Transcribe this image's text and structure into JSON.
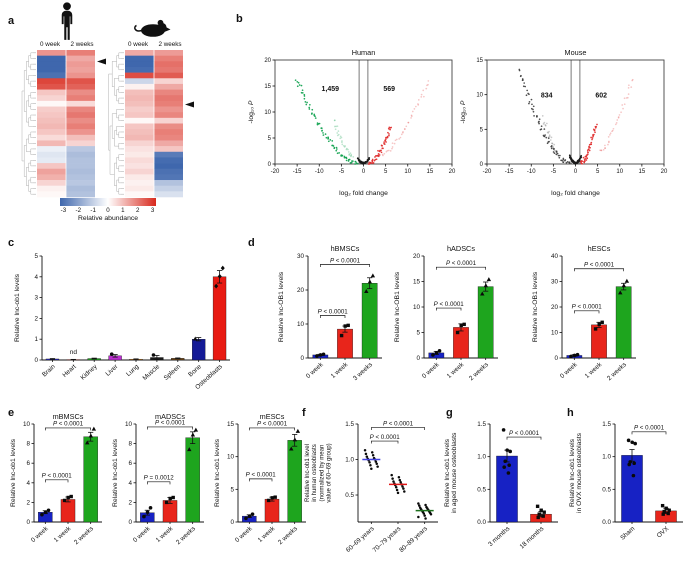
{
  "labels": {
    "a": "a",
    "b": "b",
    "c": "c",
    "d": "d",
    "e": "e",
    "f": "f",
    "g": "g",
    "h": "h"
  },
  "icons": {
    "human": "human-silhouette",
    "mouse": "mouse-silhouette"
  },
  "colorbar": {
    "ticks": [
      "-3",
      "-2",
      "-1",
      "0",
      "1",
      "2",
      "3"
    ],
    "label": "Relative abundance",
    "negative_color": "#3f67ad",
    "zero_color": "#ffffff",
    "positive_color": "#d8291d"
  },
  "palette": {
    "bar_blue": "#1722c4",
    "bar_red": "#e8251b",
    "bar_green": "#1ea51e",
    "volcano_green": "#14a352",
    "volcano_red": "#e03131",
    "volcano_dark": "#3c3c3c"
  },
  "chart_data": [
    {
      "id": "hm-human",
      "type": "heatmap",
      "columns": [
        "0 week",
        "2 weeks"
      ],
      "arrow_row": 3,
      "vmin": -3,
      "vmax": 3,
      "rows": [
        [
          1.5,
          1.8
        ],
        [
          -3,
          1.2
        ],
        [
          -3,
          1.4
        ],
        [
          -3,
          1.3
        ],
        [
          -2.8,
          1.5
        ],
        [
          2.6,
          2.4
        ],
        [
          2.4,
          2.2
        ],
        [
          0.8,
          1.6
        ],
        [
          0.6,
          1.8
        ],
        [
          0.1,
          0.5
        ],
        [
          0.7,
          1.7
        ],
        [
          0.8,
          1.9
        ],
        [
          0.9,
          1.6
        ],
        [
          1,
          1.8
        ],
        [
          0.8,
          1.5
        ],
        [
          0.5,
          0.9
        ],
        [
          1,
          0.6
        ],
        [
          -0.3,
          -1.1
        ],
        [
          -0.5,
          -1.3
        ],
        [
          -0.4,
          -1.2
        ],
        [
          0.8,
          -1.2
        ],
        [
          1.3,
          -1.3
        ],
        [
          1.1,
          -1.2
        ],
        [
          0.6,
          -1.1
        ],
        [
          0.2,
          -1.3
        ],
        [
          0.1,
          -1.2
        ]
      ]
    },
    {
      "id": "hm-mouse",
      "type": "heatmap",
      "columns": [
        "0 week",
        "2 weeks"
      ],
      "arrow_row": 10,
      "vmin": -3,
      "vmax": 3,
      "rows": [
        [
          1.2,
          1.4
        ],
        [
          -3,
          1.8
        ],
        [
          -3,
          2
        ],
        [
          -2.9,
          1.9
        ],
        [
          2.5,
          2.3
        ],
        [
          -0.8,
          0.6
        ],
        [
          0.2,
          1.2
        ],
        [
          0.9,
          1.7
        ],
        [
          1,
          1.9
        ],
        [
          0.9,
          1.8
        ],
        [
          0.7,
          1.5
        ],
        [
          0.8,
          1.7
        ],
        [
          0.1,
          0.6
        ],
        [
          0.8,
          1.6
        ],
        [
          0.9,
          1.8
        ],
        [
          1,
          1.7
        ],
        [
          0.6,
          1.2
        ],
        [
          0.4,
          0.8
        ],
        [
          0.3,
          -2.6
        ],
        [
          0.5,
          -2.9
        ],
        [
          0.4,
          -3
        ],
        [
          0.6,
          -2.8
        ],
        [
          0.3,
          -2.7
        ],
        [
          0.2,
          -1.2
        ],
        [
          0.3,
          -0.9
        ],
        [
          0.1,
          -0.6
        ]
      ]
    },
    {
      "id": "vol-human",
      "type": "volcano",
      "title": "Human",
      "xlabel": "log₂ fold change",
      "ylabel": "-log₁₀ P",
      "xlim": [
        -20,
        20
      ],
      "ylim": [
        0,
        20
      ],
      "xticks": [
        -20,
        -15,
        -10,
        -5,
        0,
        5,
        10,
        15,
        20
      ],
      "yticks": [
        0,
        5,
        10,
        15,
        20
      ],
      "vlines": [
        -1,
        1
      ],
      "counts": [
        {
          "label": "1,459",
          "color": "#14a352",
          "x": -7.5,
          "y": 14
        },
        {
          "label": "569",
          "color": "#e03131",
          "x": 5.8,
          "y": 14
        }
      ],
      "branches": [
        {
          "x0": -1.3,
          "y0": 0.15,
          "x1": -15.2,
          "y1": 16.4,
          "color": "#14a352",
          "opacity": 0.95,
          "n": 75,
          "pow": 1.7
        },
        {
          "x0": -2.4,
          "y0": 1.4,
          "x1": -6.8,
          "y1": 8.4,
          "color": "#14a352",
          "opacity": 0.28,
          "n": 30,
          "pow": 1.4
        },
        {
          "x0": 1.2,
          "y0": 0.1,
          "x1": 6.2,
          "y1": 7.2,
          "color": "#e03131",
          "opacity": 0.95,
          "n": 55,
          "pow": 1.6
        },
        {
          "x0": 4.4,
          "y0": 1.6,
          "x1": 14.8,
          "y1": 15.6,
          "color": "#e03131",
          "opacity": 0.28,
          "n": 40,
          "pow": 1.3
        }
      ],
      "center": {
        "color": "#1a1a1a",
        "n": 85,
        "halfwidth": 1.35
      }
    },
    {
      "id": "vol-mouse",
      "type": "volcano",
      "title": "Mouse",
      "xlabel": "log₂ fold change",
      "ylabel": "-log₁₀ P",
      "xlim": [
        -20,
        20
      ],
      "ylim": [
        0,
        15
      ],
      "xticks": [
        -20,
        -15,
        -10,
        -5,
        0,
        5,
        10,
        15,
        20
      ],
      "yticks": [
        0,
        5,
        10,
        15
      ],
      "vlines": [
        -1,
        1
      ],
      "counts": [
        {
          "label": "834",
          "color": "#222222",
          "x": -6.5,
          "y": 9.6
        },
        {
          "label": "602",
          "color": "#e03131",
          "x": 5.8,
          "y": 9.6
        }
      ],
      "branches": [
        {
          "x0": -1.3,
          "y0": 0.15,
          "x1": -12.8,
          "y1": 13.8,
          "color": "#3c3c3c",
          "opacity": 0.9,
          "n": 70,
          "pow": 1.7
        },
        {
          "x0": -4.2,
          "y0": 1.6,
          "x1": -7.2,
          "y1": 6.6,
          "color": "#3c3c3c",
          "opacity": 0.28,
          "n": 25,
          "pow": 1.4
        },
        {
          "x0": 1.2,
          "y0": 0.1,
          "x1": 4.7,
          "y1": 5.7,
          "color": "#e03131",
          "opacity": 0.95,
          "n": 50,
          "pow": 1.6
        },
        {
          "x0": 5.6,
          "y0": 1.7,
          "x1": 12.9,
          "y1": 12.3,
          "color": "#e03131",
          "opacity": 0.28,
          "n": 35,
          "pow": 1.3
        }
      ],
      "center": {
        "color": "#1a1a1a",
        "n": 85,
        "halfwidth": 1.35
      }
    },
    {
      "id": "c-tissues",
      "type": "bar",
      "ylabel": [
        "Relative lnc-ob1 levels"
      ],
      "categories": [
        "Brain",
        "Heart",
        "Kidney",
        "Liver",
        "Lung",
        "Muscle",
        "Spleen",
        "Bone",
        "Osteoblasts"
      ],
      "values": [
        0.05,
        0.02,
        0.07,
        0.2,
        0.04,
        0.12,
        0.08,
        1.0,
        4.0
      ],
      "errors": [
        0.02,
        0.01,
        0.02,
        0.06,
        0.015,
        0.1,
        0.02,
        0.08,
        0.3
      ],
      "colors": [
        "#2a2ad0",
        "#e03028",
        "#22a822",
        "#bb2fd0",
        "#e2871f",
        "#1a1a1a",
        "#6e4618",
        "#141a96",
        "#e81a12"
      ],
      "points": [
        [],
        [],
        [],
        [
          0.28
        ],
        [],
        [
          0.24
        ],
        [],
        [
          1.02
        ],
        [
          3.55,
          4.02,
          4.42
        ]
      ],
      "markers": [
        "dot",
        "dot",
        "dot",
        "dot",
        "dot",
        "dot",
        "dot",
        "triangle",
        "diamond"
      ],
      "ylim": [
        0,
        5
      ],
      "yticks": [
        "0",
        "1",
        "2",
        "3",
        "4",
        "5"
      ],
      "nd": {
        "index": 1,
        "label": "nd"
      }
    },
    {
      "id": "d-hbmscs",
      "type": "bar",
      "title": "hBMSCs",
      "ylabel": [
        "Relative lnc-OB1 levels"
      ],
      "categories": [
        "0 week",
        "1 week",
        "3 weeks"
      ],
      "values": [
        0.9,
        8.5,
        22
      ],
      "errors": [
        0.2,
        0.9,
        1.6
      ],
      "colors": [
        "#1722c4",
        "#e8251b",
        "#1ea51e"
      ],
      "points": [
        [
          0.6,
          0.9,
          1.1
        ],
        [
          6.6,
          9.4,
          9.6
        ],
        [
          19.6,
          22.4,
          24.2
        ]
      ],
      "markers": [
        "dot",
        "square",
        "triangle"
      ],
      "ylim": [
        0,
        30
      ],
      "yticks": [
        "0",
        "10",
        "20",
        "30"
      ],
      "sig": [
        {
          "a": 0,
          "b": 1,
          "y": 12.5,
          "label": "P < 0.0001"
        },
        {
          "a": 0,
          "b": 2,
          "y": 27.5,
          "label": "P < 0.0001"
        }
      ]
    },
    {
      "id": "d-hadscs",
      "type": "bar",
      "title": "hADSCs",
      "ylabel": [
        "Relative lnc-OB1 levels"
      ],
      "categories": [
        "0 week",
        "1 week",
        "2 weeks"
      ],
      "values": [
        1,
        6,
        14
      ],
      "errors": [
        0.3,
        0.7,
        0.9
      ],
      "colors": [
        "#1722c4",
        "#e8251b",
        "#1ea51e"
      ],
      "points": [
        [
          0.6,
          1,
          1.4
        ],
        [
          5,
          6.4,
          6.6
        ],
        [
          12.6,
          14.2,
          15.4
        ]
      ],
      "markers": [
        "dot",
        "square",
        "triangle"
      ],
      "ylim": [
        0,
        20
      ],
      "yticks": [
        "0",
        "5",
        "10",
        "15",
        "20"
      ],
      "sig": [
        {
          "a": 0,
          "b": 1,
          "y": 9.8,
          "label": "P < 0.0001"
        },
        {
          "a": 0,
          "b": 2,
          "y": 17.8,
          "label": "P < 0.0001"
        }
      ]
    },
    {
      "id": "d-hescs",
      "type": "bar",
      "title": "hESCs",
      "ylabel": [
        "Relative lnc-OB1 levels"
      ],
      "categories": [
        "0 week",
        "1 week",
        "2 weeks"
      ],
      "values": [
        1,
        13,
        28
      ],
      "errors": [
        0.3,
        1,
        1.3
      ],
      "colors": [
        "#1722c4",
        "#e8251b",
        "#1ea51e"
      ],
      "points": [
        [
          0.6,
          1,
          1.3
        ],
        [
          11.4,
          13.2,
          14
        ],
        [
          25.6,
          28.4,
          30.2
        ]
      ],
      "markers": [
        "dot",
        "square",
        "triangle"
      ],
      "ylim": [
        0,
        40
      ],
      "yticks": [
        "0",
        "10",
        "20",
        "30",
        "40"
      ],
      "sig": [
        {
          "a": 0,
          "b": 1,
          "y": 18.5,
          "label": "P < 0.0001"
        },
        {
          "a": 0,
          "b": 2,
          "y": 35,
          "label": "P < 0.0001"
        }
      ]
    },
    {
      "id": "e-mbmscs",
      "type": "bar",
      "title": "mBMSCs",
      "ylabel": [
        "Relative lnc-ob1 levels"
      ],
      "categories": [
        "0 week",
        "1 week",
        "2 weeks"
      ],
      "values": [
        1,
        2.3,
        8.7
      ],
      "errors": [
        0.15,
        0.25,
        0.45
      ],
      "colors": [
        "#1722c4",
        "#e8251b",
        "#1ea51e"
      ],
      "points": [
        [
          0.75,
          1,
          1.2
        ],
        [
          2.2,
          2.5,
          2.6
        ],
        [
          8.1,
          8.8,
          9.5
        ]
      ],
      "markers": [
        "dot",
        "square",
        "triangle"
      ],
      "ylim": [
        0,
        10
      ],
      "yticks": [
        "0",
        "2",
        "4",
        "6",
        "8",
        "10"
      ],
      "sig": [
        {
          "a": 0,
          "b": 1,
          "y": 4.3,
          "label": "P < 0.0001"
        },
        {
          "a": 0,
          "b": 2,
          "y": 9.6,
          "label": "P < 0.0001"
        }
      ]
    },
    {
      "id": "e-madscs",
      "type": "bar",
      "title": "mADSCs",
      "ylabel": [
        "Relative lnc-ob1 levels"
      ],
      "categories": [
        "0 week",
        "1 week",
        "2 weeks"
      ],
      "values": [
        0.95,
        2.2,
        8.6
      ],
      "errors": [
        0.25,
        0.3,
        0.6
      ],
      "colors": [
        "#1722c4",
        "#e8251b",
        "#1ea51e"
      ],
      "points": [
        [
          0.55,
          1,
          1.45
        ],
        [
          2,
          2.4,
          2.5
        ],
        [
          7.4,
          8.9,
          9.4
        ]
      ],
      "markers": [
        "dot",
        "square",
        "triangle"
      ],
      "ylim": [
        0,
        10
      ],
      "yticks": [
        "0",
        "2",
        "4",
        "6",
        "8",
        "10"
      ],
      "sig": [
        {
          "a": 0,
          "b": 1,
          "y": 4.1,
          "label": "P = 0.0012"
        },
        {
          "a": 0,
          "b": 2,
          "y": 9.7,
          "label": "P < 0.0001"
        }
      ]
    },
    {
      "id": "e-mescs",
      "type": "bar",
      "title": "mESCs",
      "ylabel": [
        "Relative lnc-ob1 levels"
      ],
      "categories": [
        "0 week",
        "1 week",
        "2 weeks"
      ],
      "values": [
        0.9,
        3.5,
        12.5
      ],
      "errors": [
        0.2,
        0.3,
        0.9
      ],
      "colors": [
        "#1722c4",
        "#e8251b",
        "#1ea51e"
      ],
      "points": [
        [
          0.55,
          0.9,
          1.2
        ],
        [
          3.3,
          3.7,
          3.8
        ],
        [
          11.2,
          12.6,
          13.9
        ]
      ],
      "markers": [
        "dot",
        "square",
        "triangle"
      ],
      "ylim": [
        0,
        15
      ],
      "yticks": [
        "0",
        "5",
        "10",
        "15"
      ],
      "sig": [
        {
          "a": 0,
          "b": 1,
          "y": 6.6,
          "label": "P < 0.0001"
        },
        {
          "a": 0,
          "b": 2,
          "y": 14.4,
          "label": "P < 0.0001"
        }
      ]
    },
    {
      "id": "f-age",
      "type": "dotplot",
      "ylabel": [
        "Relative lnc-ob1 level",
        "in human osteoblasts",
        "(normalized by mean",
        "value of 60–69 group)"
      ],
      "categories": [
        "60–69 years",
        "70–79 years",
        "80–89 years"
      ],
      "groups": [
        [
          1.13,
          1.1,
          1.08,
          1.06,
          1.04,
          1.02,
          1.01,
          1.0,
          0.99,
          0.97,
          0.96,
          0.94,
          0.92,
          0.9,
          0.87
        ],
        [
          0.78,
          0.75,
          0.73,
          0.71,
          0.69,
          0.68,
          0.66,
          0.65,
          0.64,
          0.62,
          0.61,
          0.59,
          0.57,
          0.55,
          0.53
        ],
        [
          0.38,
          0.36,
          0.35,
          0.33,
          0.32,
          0.31,
          0.3,
          0.29,
          0.28,
          0.27,
          0.26,
          0.25,
          0.24,
          0.23,
          0.21,
          0.19,
          0.17
        ]
      ],
      "means": [
        1.0,
        0.65,
        0.28
      ],
      "mean_colors": [
        "#4444e0",
        "#e01616",
        "#1d701d"
      ],
      "ylim": [
        0.12,
        1.5
      ],
      "yticks": [
        "0.5",
        "1.0",
        "1.5"
      ],
      "sig": [
        {
          "a": 0,
          "b": 1,
          "y": 1.26,
          "label": "P < 0.0001"
        },
        {
          "a": 0,
          "b": 2,
          "y": 1.45,
          "label": "P < 0.0001"
        }
      ]
    },
    {
      "id": "g-aged",
      "type": "bar",
      "ylabel": [
        "Relative lnc-ob1 levels",
        "in aged mouse osteoblasts"
      ],
      "categories": [
        "3 months",
        "18 months"
      ],
      "values": [
        1.01,
        0.12
      ],
      "errors": [
        0.09,
        0.04
      ],
      "colors": [
        "#1722c4",
        "#e8251b"
      ],
      "points": [
        [
          1.41,
          1.1,
          1.08,
          0.93,
          0.87,
          0.84,
          0.75
        ],
        [
          0.24,
          0.18,
          0.15,
          0.12,
          0.09,
          0.07
        ]
      ],
      "markers": [
        "dot",
        "square"
      ],
      "ylim": [
        0,
        1.5
      ],
      "yticks": [
        "0.0",
        "0.5",
        "1.0",
        "1.5"
      ],
      "sig": [
        {
          "a": 0,
          "b": 1,
          "y": 1.3,
          "label": "P < 0.0001"
        }
      ]
    },
    {
      "id": "h-ovx",
      "type": "bar",
      "ylabel": [
        "Relative lnc-ob1 levels",
        "in OVX mouse osteoblasts"
      ],
      "categories": [
        "Sham",
        "OVX"
      ],
      "values": [
        1.02,
        0.17
      ],
      "errors": [
        0.09,
        0.04
      ],
      "colors": [
        "#1722c4",
        "#e8251b"
      ],
      "points": [
        [
          1.25,
          1.22,
          1.2,
          0.92,
          0.9,
          0.88,
          0.71
        ],
        [
          0.25,
          0.21,
          0.18,
          0.16,
          0.13,
          0.12
        ]
      ],
      "markers": [
        "dot",
        "square"
      ],
      "ylim": [
        0,
        1.5
      ],
      "yticks": [
        "0.0",
        "0.5",
        "1.0",
        "1.5"
      ],
      "sig": [
        {
          "a": 0,
          "b": 1,
          "y": 1.38,
          "label": "P < 0.0001"
        }
      ]
    }
  ]
}
